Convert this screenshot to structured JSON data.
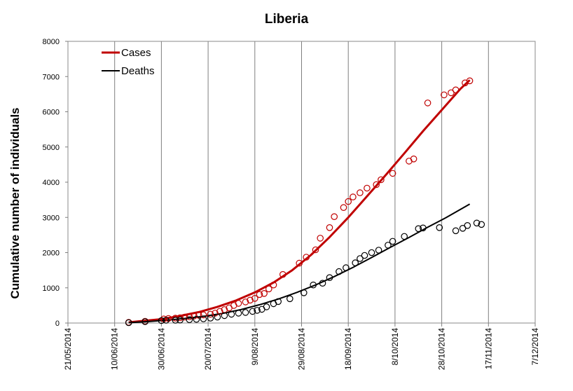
{
  "chart_data": {
    "type": "line",
    "title": "Liberia",
    "ylabel": "Cumulative number of individuals",
    "xlabel": "",
    "ylim": [
      0,
      8000
    ],
    "y_ticks": [
      "0",
      "1000",
      "2000",
      "3000",
      "4000",
      "5000",
      "6000",
      "7000",
      "8000"
    ],
    "x_ticks": [
      "21/05/2014",
      "10/06/2014",
      "30/06/2014",
      "20/07/2014",
      "9/08/2014",
      "29/08/2014",
      "18/09/2014",
      "8/10/2014",
      "28/10/2014",
      "17/11/2014",
      "7/12/2014"
    ],
    "x_range": [
      "2014-05-21",
      "2014-12-07"
    ],
    "grid": "vertical",
    "legend_position": "top-left",
    "colors": {
      "cases": "#c00000",
      "deaths": "#000000"
    },
    "series": [
      {
        "name": "Cases",
        "kind": "fitted-line",
        "color": "#c00000",
        "points": [
          [
            "2014-06-16",
            20
          ],
          [
            "2014-06-22",
            60
          ],
          [
            "2014-06-30",
            110
          ],
          [
            "2014-07-08",
            200
          ],
          [
            "2014-07-16",
            310
          ],
          [
            "2014-07-24",
            460
          ],
          [
            "2014-08-01",
            640
          ],
          [
            "2014-08-09",
            870
          ],
          [
            "2014-08-17",
            1150
          ],
          [
            "2014-08-25",
            1500
          ],
          [
            "2014-09-02",
            1930
          ],
          [
            "2014-09-10",
            2440
          ],
          [
            "2014-09-18",
            3000
          ],
          [
            "2014-09-26",
            3600
          ],
          [
            "2014-10-04",
            4200
          ],
          [
            "2014-10-12",
            4820
          ],
          [
            "2014-10-20",
            5450
          ],
          [
            "2014-10-28",
            6050
          ],
          [
            "2014-11-05",
            6650
          ],
          [
            "2014-11-09",
            6900
          ]
        ]
      },
      {
        "name": "Deaths",
        "kind": "fitted-line",
        "color": "#000000",
        "points": [
          [
            "2014-06-16",
            10
          ],
          [
            "2014-06-24",
            40
          ],
          [
            "2014-07-02",
            80
          ],
          [
            "2014-07-10",
            130
          ],
          [
            "2014-07-18",
            190
          ],
          [
            "2014-07-26",
            270
          ],
          [
            "2014-08-03",
            380
          ],
          [
            "2014-08-11",
            520
          ],
          [
            "2014-08-19",
            680
          ],
          [
            "2014-08-27",
            870
          ],
          [
            "2014-09-04",
            1080
          ],
          [
            "2014-09-12",
            1320
          ],
          [
            "2014-09-20",
            1580
          ],
          [
            "2014-09-28",
            1860
          ],
          [
            "2014-10-06",
            2150
          ],
          [
            "2014-10-14",
            2430
          ],
          [
            "2014-10-22",
            2720
          ],
          [
            "2014-10-30",
            3000
          ],
          [
            "2014-11-09",
            3380
          ]
        ]
      },
      {
        "name": "Cases",
        "kind": "observed",
        "marker": "open-circle",
        "color": "#c00000",
        "points": [
          [
            "2014-06-16",
            20
          ],
          [
            "2014-06-23",
            50
          ],
          [
            "2014-07-01",
            115
          ],
          [
            "2014-07-03",
            130
          ],
          [
            "2014-07-06",
            140
          ],
          [
            "2014-07-08",
            150
          ],
          [
            "2014-07-10",
            170
          ],
          [
            "2014-07-12",
            180
          ],
          [
            "2014-07-14",
            200
          ],
          [
            "2014-07-16",
            220
          ],
          [
            "2014-07-18",
            230
          ],
          [
            "2014-07-21",
            250
          ],
          [
            "2014-07-23",
            280
          ],
          [
            "2014-07-25",
            330
          ],
          [
            "2014-07-27",
            380
          ],
          [
            "2014-07-29",
            430
          ],
          [
            "2014-07-31",
            500
          ],
          [
            "2014-08-02",
            560
          ],
          [
            "2014-08-05",
            600
          ],
          [
            "2014-08-07",
            650
          ],
          [
            "2014-08-09",
            700
          ],
          [
            "2014-08-11",
            810
          ],
          [
            "2014-08-13",
            840
          ],
          [
            "2014-08-15",
            970
          ],
          [
            "2014-08-17",
            1080
          ],
          [
            "2014-08-21",
            1380
          ],
          [
            "2014-08-28",
            1700
          ],
          [
            "2014-08-31",
            1870
          ],
          [
            "2014-09-04",
            2080
          ],
          [
            "2014-09-06",
            2410
          ],
          [
            "2014-09-10",
            2710
          ],
          [
            "2014-09-12",
            3020
          ],
          [
            "2014-09-16",
            3280
          ],
          [
            "2014-09-18",
            3450
          ],
          [
            "2014-09-20",
            3580
          ],
          [
            "2014-09-23",
            3700
          ],
          [
            "2014-09-26",
            3830
          ],
          [
            "2014-09-30",
            3930
          ],
          [
            "2014-10-02",
            4070
          ],
          [
            "2014-10-07",
            4250
          ],
          [
            "2014-10-14",
            4600
          ],
          [
            "2014-10-16",
            4660
          ],
          [
            "2014-10-22",
            6250
          ],
          [
            "2014-10-29",
            6480
          ],
          [
            "2014-11-01",
            6540
          ],
          [
            "2014-11-03",
            6620
          ],
          [
            "2014-11-07",
            6820
          ],
          [
            "2014-11-09",
            6880
          ]
        ]
      },
      {
        "name": "Deaths",
        "kind": "observed",
        "marker": "open-circle",
        "color": "#000000",
        "points": [
          [
            "2014-06-16",
            10
          ],
          [
            "2014-06-23",
            40
          ],
          [
            "2014-06-30",
            70
          ],
          [
            "2014-07-02",
            80
          ],
          [
            "2014-07-06",
            80
          ],
          [
            "2014-07-08",
            85
          ],
          [
            "2014-07-12",
            95
          ],
          [
            "2014-07-15",
            105
          ],
          [
            "2014-07-18",
            120
          ],
          [
            "2014-07-21",
            140
          ],
          [
            "2014-07-24",
            170
          ],
          [
            "2014-07-27",
            210
          ],
          [
            "2014-07-30",
            250
          ],
          [
            "2014-08-02",
            280
          ],
          [
            "2014-08-05",
            300
          ],
          [
            "2014-08-08",
            330
          ],
          [
            "2014-08-10",
            360
          ],
          [
            "2014-08-12",
            390
          ],
          [
            "2014-08-14",
            460
          ],
          [
            "2014-08-17",
            550
          ],
          [
            "2014-08-19",
            610
          ],
          [
            "2014-08-24",
            690
          ],
          [
            "2014-08-30",
            860
          ],
          [
            "2014-09-03",
            1080
          ],
          [
            "2014-09-07",
            1130
          ],
          [
            "2014-09-10",
            1290
          ],
          [
            "2014-09-14",
            1460
          ],
          [
            "2014-09-17",
            1570
          ],
          [
            "2014-09-21",
            1710
          ],
          [
            "2014-09-23",
            1830
          ],
          [
            "2014-09-25",
            1920
          ],
          [
            "2014-09-28",
            2000
          ],
          [
            "2014-10-01",
            2070
          ],
          [
            "2014-10-05",
            2210
          ],
          [
            "2014-10-07",
            2320
          ],
          [
            "2014-10-12",
            2460
          ],
          [
            "2014-10-18",
            2680
          ],
          [
            "2014-10-20",
            2700
          ],
          [
            "2014-10-27",
            2710
          ],
          [
            "2014-11-03",
            2620
          ],
          [
            "2014-11-06",
            2690
          ],
          [
            "2014-11-08",
            2770
          ],
          [
            "2014-11-12",
            2840
          ],
          [
            "2014-11-14",
            2800
          ]
        ]
      }
    ]
  }
}
